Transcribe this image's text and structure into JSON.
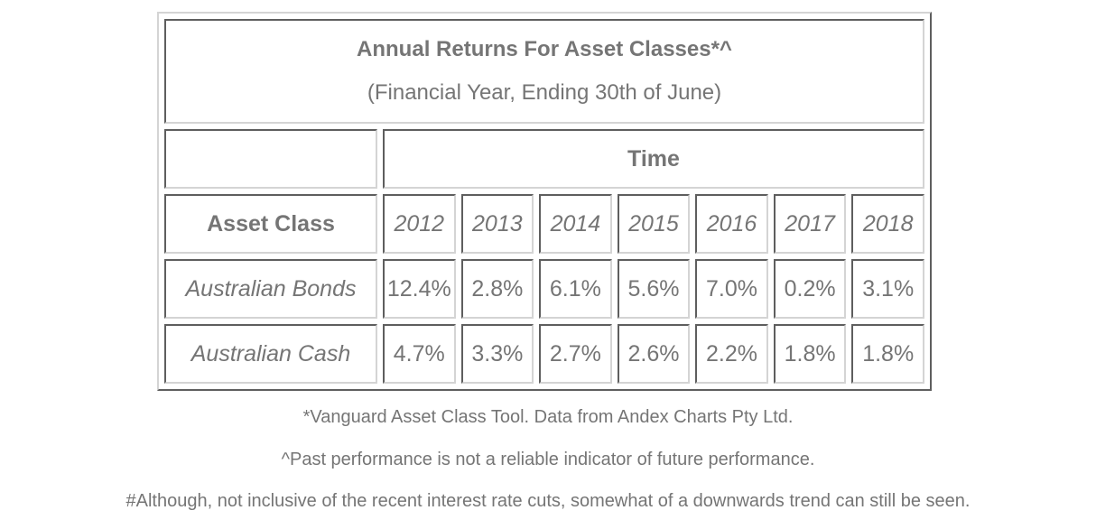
{
  "table": {
    "title": "Annual Returns For Asset Classes*^",
    "subtitle": "(Financial Year, Ending 30th of June)",
    "time_header": "Time",
    "row_header_label": "Asset Class",
    "years": [
      "2012",
      "2013",
      "2014",
      "2015",
      "2016",
      "2017",
      "2018"
    ],
    "rows": [
      {
        "asset": "Australian Bonds",
        "values": [
          "12.4%",
          "2.8%",
          "6.1%",
          "5.6%",
          "7.0%",
          "0.2%",
          "3.1%"
        ]
      },
      {
        "asset": "Australian Cash",
        "values": [
          "4.7%",
          "3.3%",
          "2.7%",
          "2.6%",
          "2.2%",
          "1.8%",
          "1.8%"
        ]
      }
    ]
  },
  "footnotes": {
    "source": "*Vanguard Asset Class Tool. Data from Andex Charts Pty Ltd.",
    "disclaimer": "^Past performance is not a reliable indicator of future performance.",
    "note": "#Although, not inclusive of the recent interest rate cuts, somewhat of a downwards trend can still be seen."
  },
  "colors": {
    "text": "#757575",
    "border_dark": "#5e5e5e",
    "border_light": "#d4d4d4"
  }
}
